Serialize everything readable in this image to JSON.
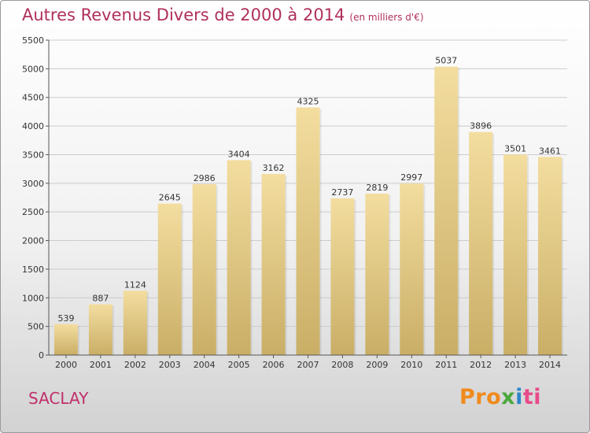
{
  "title": "Autres Revenus Divers de 2000 à 2014",
  "subtitle": "(en milliers d'€)",
  "place": "SACLAY",
  "logo": {
    "p1": "Pro",
    "p2": "x",
    "p3": "i",
    "p4": "ti"
  },
  "chart_data": {
    "type": "bar",
    "title": "Autres Revenus Divers de 2000 à 2014",
    "subtitle": "(en milliers d'€)",
    "xlabel": "",
    "ylabel": "",
    "categories": [
      "2000",
      "2001",
      "2002",
      "2003",
      "2004",
      "2005",
      "2006",
      "2007",
      "2008",
      "2009",
      "2010",
      "2011",
      "2012",
      "2013",
      "2014"
    ],
    "values": [
      539,
      887,
      1124,
      2645,
      2986,
      3404,
      3162,
      4325,
      2737,
      2819,
      2997,
      5037,
      3896,
      3501,
      3461
    ],
    "ylim": [
      0,
      5500
    ],
    "yticks": [
      0,
      500,
      1000,
      1500,
      2000,
      2500,
      3000,
      3500,
      4000,
      4500,
      5000,
      5500
    ],
    "grid": true,
    "legend": "none",
    "colors": {
      "bar_top": "#f3dd9f",
      "bar_bottom": "#c9ae66",
      "grid": "#cccccc",
      "title": "#b0305a"
    }
  }
}
